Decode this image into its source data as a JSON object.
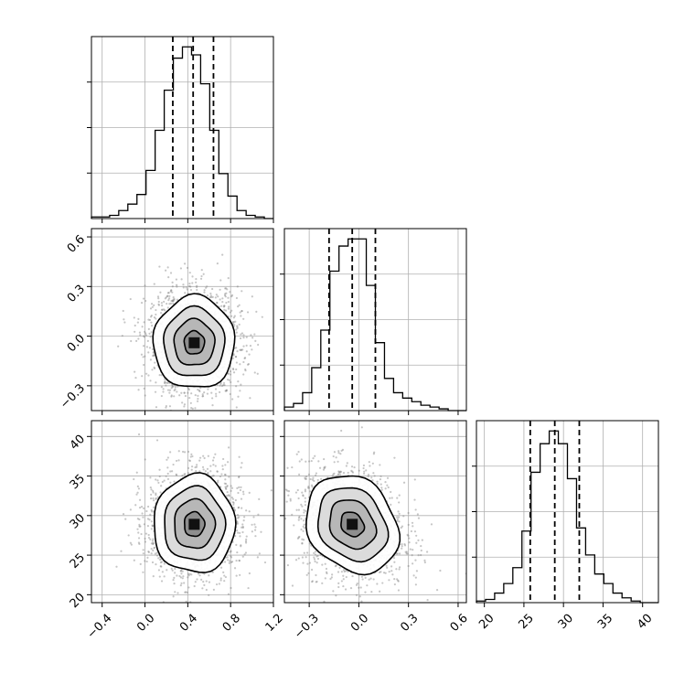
{
  "chart_data": {
    "type": "corner",
    "parameters": [
      {
        "name": "",
        "xlim": [
          -0.5,
          1.2
        ],
        "ticks": [
          -0.4,
          0.0,
          0.4,
          0.8,
          1.2
        ],
        "tick_labels": [
          "−0.4",
          "0.0",
          "0.4",
          "0.8",
          "1.2"
        ],
        "quantiles": [
          0.26,
          0.45,
          0.64
        ],
        "hist": {
          "edges": [
            -0.5,
            -0.415,
            -0.33,
            -0.245,
            -0.16,
            -0.075,
            0.01,
            0.095,
            0.18,
            0.265,
            0.35,
            0.435,
            0.52,
            0.605,
            0.69,
            0.775,
            0.86,
            0.945,
            1.03,
            1.115,
            1.2
          ],
          "counts": [
            1,
            1,
            2,
            5,
            9,
            15,
            30,
            55,
            80,
            100,
            107,
            102,
            84,
            55,
            28,
            14,
            5,
            2,
            1,
            0
          ]
        }
      },
      {
        "name": "",
        "xlim": [
          -0.45,
          0.65
        ],
        "ticks": [
          -0.3,
          0.0,
          0.3,
          0.6
        ],
        "tick_labels": [
          "−0.3",
          "0.0",
          "0.3",
          "0.6"
        ],
        "quantiles": [
          -0.18,
          -0.04,
          0.1
        ],
        "hist": {
          "edges": [
            -0.45,
            -0.395,
            -0.34,
            -0.285,
            -0.23,
            -0.175,
            -0.12,
            -0.065,
            -0.01,
            0.045,
            0.1,
            0.155,
            0.21,
            0.265,
            0.32,
            0.375,
            0.43,
            0.485,
            0.54,
            0.595,
            0.65
          ],
          "counts": [
            2,
            4,
            10,
            24,
            45,
            78,
            92,
            96,
            96,
            70,
            38,
            18,
            10,
            7,
            5,
            3,
            2,
            1,
            0,
            0
          ]
        }
      },
      {
        "name": "",
        "xlim": [
          19,
          42
        ],
        "ticks": [
          20,
          25,
          30,
          35,
          40
        ],
        "tick_labels": [
          "20",
          "25",
          "30",
          "35",
          "40"
        ],
        "quantiles": [
          25.8,
          28.9,
          32.0
        ],
        "hist": {
          "edges": [
            19,
            20.15,
            21.3,
            22.45,
            23.6,
            24.75,
            25.9,
            27.05,
            28.2,
            29.35,
            30.5,
            31.65,
            32.8,
            33.95,
            35.1,
            36.25,
            37.4,
            38.55,
            39.7,
            40.85,
            42
          ],
          "counts": [
            1,
            2,
            6,
            12,
            22,
            45,
            82,
            100,
            108,
            100,
            78,
            47,
            30,
            18,
            12,
            6,
            3,
            1,
            0,
            0
          ]
        }
      }
    ],
    "panels_2d": [
      {
        "row": 1,
        "col": 0,
        "x_param": 0,
        "y_param": 1,
        "ylim": [
          -0.45,
          0.65
        ],
        "y_ticks": [
          -0.3,
          0.0,
          0.3,
          0.6
        ],
        "y_tick_labels": [
          "−0.3",
          "0.0",
          "0.3",
          "0.6"
        ],
        "center": [
          0.46,
          -0.04
        ],
        "sigma": [
          0.19,
          0.14
        ],
        "rho": 0.0
      },
      {
        "row": 2,
        "col": 0,
        "x_param": 0,
        "y_param": 2,
        "ylim": [
          19,
          42
        ],
        "y_ticks": [
          20,
          25,
          30,
          35,
          40
        ],
        "y_tick_labels": [
          "20",
          "25",
          "30",
          "35",
          "40"
        ],
        "center": [
          0.46,
          28.9
        ],
        "sigma": [
          0.19,
          3.1
        ],
        "rho": 0.0
      },
      {
        "row": 2,
        "col": 1,
        "x_param": 1,
        "y_param": 2,
        "ylim": [
          19,
          42
        ],
        "y_ticks": [
          20,
          25,
          30,
          35,
          40
        ],
        "y_tick_labels": [
          "20",
          "25",
          "30",
          "35",
          "40"
        ],
        "center": [
          -0.04,
          28.9
        ],
        "sigma": [
          0.14,
          3.1
        ],
        "rho": -0.2
      }
    ],
    "contour_levels_sigma": [
      0.5,
      1.0,
      1.5,
      2.0
    ],
    "grid": true,
    "colors": {
      "line": "#000000",
      "grid": "#b0b0b0",
      "points": "#808080"
    }
  }
}
